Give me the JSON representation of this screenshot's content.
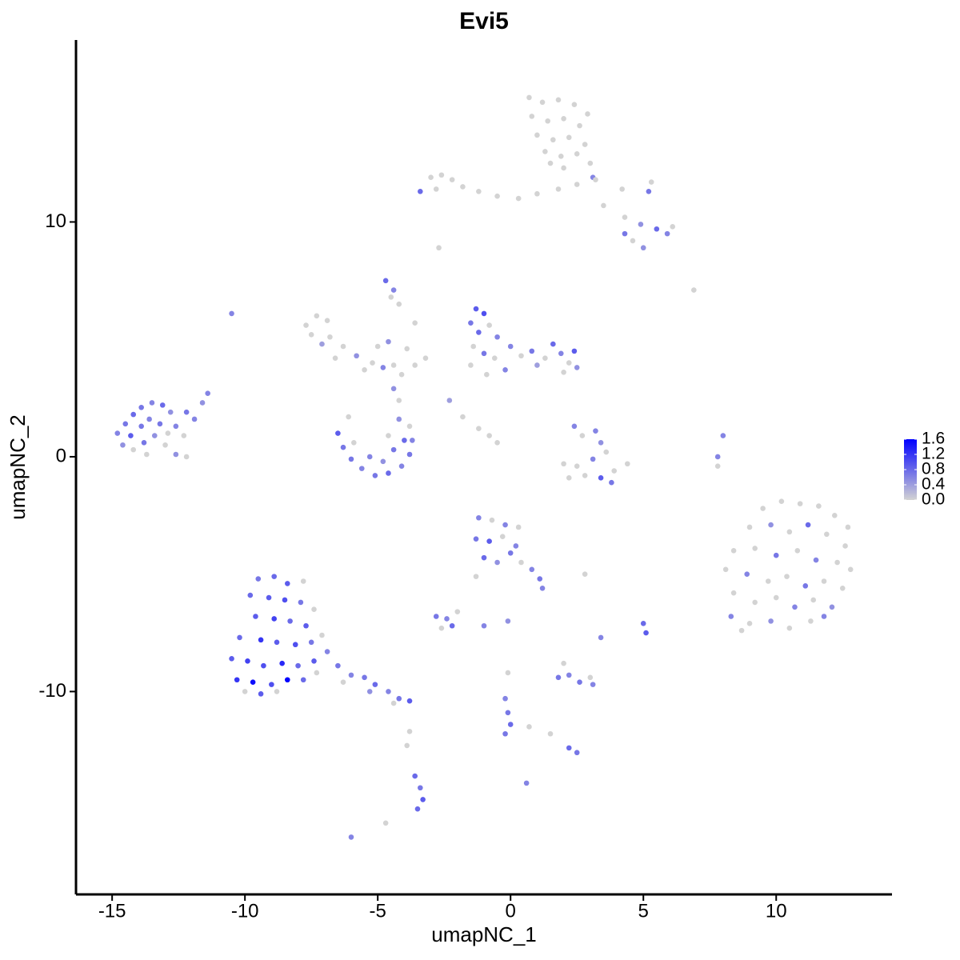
{
  "chart_data": {
    "type": "scatter",
    "title": "Evi5",
    "x_label": "umapNC_1",
    "y_label": "umapNC_2",
    "xlim": [
      -16.36,
      14.36
    ],
    "ylim": [
      -18.64,
      17.75
    ],
    "xticks": [
      -15,
      -10,
      -5,
      0,
      5,
      10
    ],
    "yticks": [
      -10,
      0,
      10
    ],
    "color_low": "#d3d3d3",
    "color_high": "#0000ff",
    "clim": [
      0,
      1.6
    ],
    "cticks": [
      {
        "value": 0,
        "label": "0.0"
      },
      0.4,
      0.8,
      1.2,
      1.6
    ],
    "x": [
      0.7,
      1.2,
      1.8,
      2.4,
      2.9,
      0.8,
      1.4,
      2.0,
      2.6,
      1.0,
      1.6,
      2.2,
      2.8,
      1.3,
      1.9,
      2.5,
      3.0,
      3.1,
      2.0,
      1.5,
      -3.0,
      -2.6,
      -2.2,
      -2.8,
      -1.8,
      -1.2,
      -0.5,
      0.3,
      1.0,
      1.8,
      2.5,
      3.2,
      4.2,
      5.3,
      5.2,
      3.5,
      4.3,
      4.9,
      5.5,
      5.9,
      6.1,
      4.6,
      5.0,
      4.3,
      -3.4,
      -2.7,
      6.9,
      -10.5,
      -7.7,
      -7.3,
      -6.9,
      -7.5,
      -6.8,
      -6.3,
      -5.8,
      -5.2,
      -4.8,
      -4.4,
      -5.5,
      -6.6,
      -7.1,
      -5.0,
      -3.6,
      -3.2,
      -3.9,
      -3.6,
      -4.2,
      -4.7,
      -4.4,
      -4.5,
      -4.6,
      -4.1,
      -1.3,
      -1.0,
      -1.5,
      -1.2,
      -0.8,
      -0.5,
      -1.4,
      -1.0,
      -0.6,
      0.0,
      0.4,
      0.8,
      1.3,
      1.6,
      1.9,
      2.2,
      2.5,
      2.0,
      1.0,
      -0.2,
      -1.5,
      -0.9,
      2.4,
      -2.3,
      -1.8,
      -1.2,
      -0.8,
      -0.5,
      -14.8,
      -14.5,
      -14.2,
      -13.9,
      -13.5,
      -13.1,
      -12.8,
      -14.6,
      -14.3,
      -13.9,
      -13.6,
      -13.2,
      -12.9,
      -12.6,
      -12.3,
      -14.2,
      -13.8,
      -13.4,
      -13.0,
      -12.6,
      -12.2,
      -11.9,
      -11.6,
      -11.4,
      -12.2,
      -13.7,
      -6.5,
      -6.3,
      -6.0,
      -5.6,
      -5.1,
      -4.6,
      -4.1,
      -3.8,
      -3.7,
      -3.8,
      -4.2,
      -5.9,
      -5.3,
      -4.8,
      -4.4,
      -4.0,
      -4.6,
      -4.2,
      -4.4,
      -6.1,
      2.4,
      2.7,
      3.2,
      3.4,
      3.6,
      3.1,
      2.5,
      2.0,
      2.8,
      3.4,
      3.9,
      4.4,
      3.8,
      2.2,
      8.0,
      7.8,
      7.8,
      9.5,
      10.2,
      10.9,
      11.6,
      12.2,
      12.7,
      9.0,
      9.8,
      10.5,
      11.2,
      11.9,
      12.6,
      8.4,
      9.2,
      10.0,
      10.8,
      11.5,
      12.3,
      12.8,
      8.1,
      8.9,
      9.7,
      10.4,
      11.1,
      11.8,
      12.5,
      8.4,
      9.2,
      10.0,
      10.7,
      11.4,
      12.1,
      8.3,
      9.0,
      9.8,
      10.5,
      11.3,
      8.7,
      11.8,
      -9.5,
      -8.9,
      -8.4,
      -7.8,
      -9.8,
      -9.1,
      -8.5,
      -7.9,
      -7.4,
      -9.6,
      -8.9,
      -8.3,
      -7.7,
      -10.2,
      -9.4,
      -8.8,
      -8.1,
      -7.5,
      -7.1,
      -10.5,
      -9.9,
      -9.3,
      -8.6,
      -8.0,
      -7.4,
      -10.3,
      -9.7,
      -9.0,
      -8.4,
      -7.8,
      -10.0,
      -9.4,
      -8.8,
      -7.3,
      -6.9,
      -6.5,
      -6.0,
      -5.5,
      -5.1,
      -4.6,
      -4.2,
      -3.8,
      -4.4,
      -6.3,
      -5.3,
      -1.2,
      -0.7,
      -0.2,
      0.3,
      -1.3,
      -0.8,
      -0.3,
      0.2,
      -1.0,
      -0.5,
      0.0,
      0.4,
      0.8,
      1.1,
      1.2,
      -1.3,
      2.8,
      -2.8,
      -2.4,
      -2.2,
      -2.6,
      -2.0,
      -1.0,
      -0.1,
      5.0,
      5.1,
      3.4,
      1.8,
      2.2,
      2.6,
      3.0,
      3.1,
      2.0,
      -0.1,
      -0.2,
      -0.1,
      0.0,
      -0.2,
      0.7,
      1.5,
      2.2,
      2.5,
      -3.6,
      -3.4,
      -3.3,
      -3.5,
      -3.8,
      -3.9,
      0.6,
      -4.7,
      -6.0
    ],
    "y": [
      15.3,
      15.1,
      15.2,
      15.0,
      14.6,
      14.5,
      14.3,
      14.4,
      14.1,
      13.7,
      13.5,
      13.6,
      13.3,
      13.0,
      12.8,
      12.9,
      12.5,
      11.9,
      12.3,
      12.5,
      11.9,
      12.0,
      11.8,
      11.4,
      11.5,
      11.3,
      11.1,
      11.0,
      11.2,
      11.4,
      11.6,
      11.8,
      11.4,
      11.7,
      11.3,
      10.7,
      10.2,
      9.9,
      9.7,
      9.5,
      9.8,
      9.2,
      8.9,
      9.5,
      11.3,
      8.9,
      7.1,
      6.1,
      5.6,
      6.0,
      5.8,
      5.2,
      5.1,
      4.7,
      4.3,
      4.0,
      3.8,
      3.9,
      3.7,
      4.2,
      4.8,
      4.7,
      3.9,
      4.2,
      4.6,
      5.7,
      6.5,
      7.5,
      7.1,
      6.8,
      4.9,
      3.5,
      6.3,
      6.1,
      5.7,
      5.3,
      5.6,
      5.1,
      4.7,
      4.4,
      4.2,
      4.7,
      4.3,
      4.5,
      4.2,
      4.8,
      4.4,
      4.0,
      3.8,
      3.6,
      3.9,
      3.7,
      3.9,
      3.5,
      4.5,
      2.4,
      1.7,
      1.2,
      0.9,
      0.6,
      1.0,
      1.4,
      1.8,
      2.1,
      2.3,
      2.2,
      1.9,
      0.5,
      0.9,
      1.3,
      1.6,
      1.4,
      1.0,
      1.3,
      0.9,
      0.3,
      0.6,
      0.9,
      0.5,
      0.1,
      0.0,
      1.6,
      2.3,
      2.7,
      1.9,
      0.1,
      1.0,
      0.4,
      -0.1,
      -0.5,
      -0.8,
      -0.7,
      -0.4,
      0.1,
      0.7,
      1.3,
      1.6,
      0.6,
      0.0,
      -0.2,
      0.3,
      0.7,
      0.9,
      2.4,
      2.9,
      1.7,
      1.3,
      0.9,
      1.1,
      0.6,
      0.2,
      -0.1,
      -0.4,
      -0.3,
      -0.8,
      -0.9,
      -0.6,
      -0.3,
      -1.1,
      -0.9,
      0.9,
      0.0,
      -0.4,
      -2.2,
      -1.9,
      -2.0,
      -2.1,
      -2.5,
      -3.0,
      -3.0,
      -2.9,
      -3.2,
      -2.9,
      -3.3,
      -3.8,
      -4.0,
      -3.9,
      -4.2,
      -4.0,
      -4.4,
      -4.5,
      -4.8,
      -4.8,
      -5.0,
      -5.3,
      -5.1,
      -5.5,
      -5.3,
      -5.6,
      -5.8,
      -6.2,
      -6.0,
      -6.4,
      -6.1,
      -6.4,
      -6.8,
      -7.1,
      -7.0,
      -7.3,
      -7.0,
      -7.4,
      -6.8,
      -5.2,
      -5.1,
      -5.4,
      -5.3,
      -5.9,
      -6.0,
      -6.1,
      -6.2,
      -6.5,
      -6.8,
      -6.9,
      -7.0,
      -7.2,
      -7.7,
      -7.8,
      -7.9,
      -8.0,
      -7.9,
      -7.6,
      -8.6,
      -8.7,
      -8.9,
      -8.8,
      -8.9,
      -8.7,
      -9.5,
      -9.6,
      -9.7,
      -9.5,
      -9.5,
      -10.0,
      -10.1,
      -10.0,
      -9.2,
      -8.3,
      -8.9,
      -9.3,
      -9.4,
      -9.7,
      -10.0,
      -10.3,
      -10.4,
      -10.5,
      -9.6,
      -10.0,
      -2.6,
      -2.7,
      -2.9,
      -3.0,
      -3.5,
      -3.6,
      -3.4,
      -3.8,
      -4.3,
      -4.5,
      -4.1,
      -4.5,
      -4.8,
      -5.2,
      -5.6,
      -5.1,
      -5.0,
      -6.8,
      -6.9,
      -7.2,
      -7.3,
      -6.6,
      -7.2,
      -7.0,
      -7.1,
      -7.5,
      -7.7,
      -9.4,
      -9.3,
      -9.6,
      -9.4,
      -9.7,
      -8.8,
      -9.2,
      -10.3,
      -10.9,
      -11.4,
      -11.8,
      -11.5,
      -11.8,
      -12.4,
      -12.6,
      -13.6,
      -14.1,
      -14.6,
      -15.0,
      -11.7,
      -12.3,
      -13.9,
      -15.6,
      -16.2
    ],
    "color_values": [
      0,
      0,
      0,
      0,
      0,
      0,
      0,
      0,
      0,
      0,
      0,
      0,
      0,
      0,
      0,
      0,
      0,
      0.6,
      0,
      0,
      0,
      0,
      0,
      0,
      0,
      0,
      0,
      0,
      0,
      0,
      0,
      0,
      0,
      0,
      0.7,
      0,
      0,
      0.5,
      0.8,
      0.6,
      0,
      0,
      0.5,
      0.7,
      0.8,
      0,
      0,
      0.6,
      0,
      0,
      0,
      0,
      0,
      0,
      0.5,
      0,
      0.6,
      0,
      0,
      0,
      0.4,
      0,
      0,
      0,
      0,
      0,
      0,
      0.8,
      0.6,
      0,
      0.5,
      0,
      0.9,
      1.0,
      0.7,
      0.8,
      0,
      0.6,
      0,
      0.7,
      0,
      0.6,
      0,
      0.7,
      0,
      0.8,
      0.6,
      0,
      0.5,
      0,
      0.4,
      0.6,
      0,
      0,
      0.9,
      0.4,
      0,
      0,
      0,
      0,
      0.6,
      0.7,
      0.8,
      0.7,
      0.6,
      0.8,
      0.5,
      0.5,
      0.9,
      0.7,
      0.6,
      0.7,
      0,
      0.6,
      0,
      0,
      0.7,
      0.5,
      0,
      0.5,
      0,
      0.6,
      0.5,
      0.6,
      0.7,
      0,
      0.9,
      0.7,
      0.7,
      0.6,
      0.7,
      0.8,
      0.6,
      0.7,
      0.6,
      0,
      0.5,
      0,
      0.6,
      0.5,
      0.7,
      0.8,
      0,
      0,
      0.5,
      0,
      0.6,
      0,
      0.6,
      0.5,
      0,
      0.6,
      0,
      0,
      0,
      0.9,
      0,
      0,
      0.7,
      0,
      0.6,
      0.6,
      0,
      0,
      0,
      0,
      0,
      0,
      0,
      0,
      0.5,
      0,
      0.8,
      0,
      0,
      0,
      0,
      0.7,
      0,
      0.6,
      0,
      0,
      0,
      0.6,
      0,
      0,
      0.7,
      0,
      0,
      0,
      0,
      0,
      0.6,
      0,
      0.5,
      0.6,
      0,
      0.5,
      0,
      0,
      0,
      0.6,
      0.7,
      0.8,
      0.9,
      0,
      0.8,
      0.9,
      1.0,
      0.7,
      0,
      0.9,
      1.1,
      0.8,
      0.9,
      0.8,
      1.2,
      0.9,
      1.0,
      0.7,
      0,
      0.9,
      1.1,
      1.0,
      1.3,
      0.8,
      0.9,
      1.2,
      1.5,
      1.0,
      1.6,
      0.8,
      0,
      0.9,
      0,
      0,
      0.6,
      0.7,
      0.6,
      0.7,
      0.8,
      0.6,
      0.7,
      0.9,
      0,
      0,
      0.5,
      0.6,
      0,
      0.6,
      0,
      0.7,
      0.9,
      0,
      0.6,
      0.8,
      0.5,
      0.7,
      0,
      0.6,
      0.7,
      0.6,
      0,
      0,
      0.7,
      0.6,
      0.8,
      0,
      0,
      0.6,
      0.5,
      0.8,
      0.9,
      0.6,
      0.7,
      0.6,
      0.7,
      0,
      0.6,
      0,
      0,
      0.6,
      0.7,
      0.8,
      0.7,
      0,
      0,
      0.8,
      0.7,
      0.8,
      0.7,
      0.9,
      0.8,
      0,
      0,
      0.6,
      0,
      0.6
    ]
  }
}
